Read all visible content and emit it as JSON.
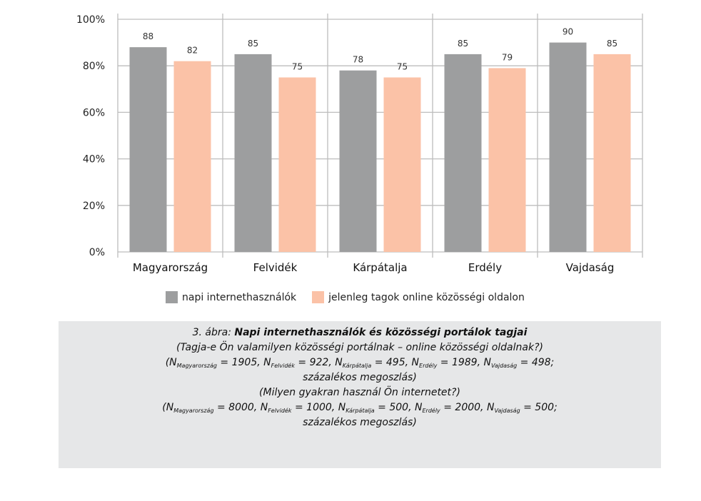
{
  "chart_data": {
    "type": "bar",
    "categories": [
      "Magyarország",
      "Felvidék",
      "Kárpátalja",
      "Erdély",
      "Vajdaság"
    ],
    "series": [
      {
        "name": "napi internethasználók",
        "values": [
          88,
          85,
          78,
          85,
          90
        ],
        "color": "#9d9e9f"
      },
      {
        "name": "jelenleg tagok online közösségi oldalon",
        "values": [
          82,
          75,
          75,
          79,
          85
        ],
        "color": "#fbc2a7"
      }
    ],
    "ylim": [
      0,
      100
    ],
    "yticks": [
      "0%",
      "20%",
      "40%",
      "60%",
      "80%",
      "100%"
    ],
    "ytick_values": [
      0,
      20,
      40,
      60,
      80,
      100
    ],
    "grid": true,
    "legend_position": "bottom"
  },
  "caption": {
    "title_prefix": "3. ábra: ",
    "title": "Napi internethasználók és közösségi portálok tagjai",
    "question1": "(Tagja-e Ön valamilyen közösségi portálnak – online közösségi oldalnak?)",
    "n1": [
      {
        "pre": "(N",
        "sub": "Magyarország",
        "post": " = 1905, "
      },
      {
        "pre": "N",
        "sub": "Felvidék",
        "post": " = 922, "
      },
      {
        "pre": "N",
        "sub": "Kárpátalja",
        "post": " = 495, "
      },
      {
        "pre": "N",
        "sub": "Erdély",
        "post": " = 1989, "
      },
      {
        "pre": "N",
        "sub": "Vajdaság",
        "post": " = 498;"
      }
    ],
    "dist1": "százalékos megoszlás)",
    "question2": "(Milyen gyakran használ Ön internetet?)",
    "n2": [
      {
        "pre": "(N",
        "sub": "Magyarország",
        "post": " = 8000, "
      },
      {
        "pre": "N",
        "sub": "Felvidék",
        "post": " = 1000, "
      },
      {
        "pre": "N",
        "sub": "Kárpátalja",
        "post": " = 500, "
      },
      {
        "pre": "N",
        "sub": "Erdély",
        "post": " = 2000, "
      },
      {
        "pre": "N",
        "sub": "Vajdaság",
        "post": " = 500;"
      }
    ],
    "dist2": "százalékos megoszlás)"
  }
}
